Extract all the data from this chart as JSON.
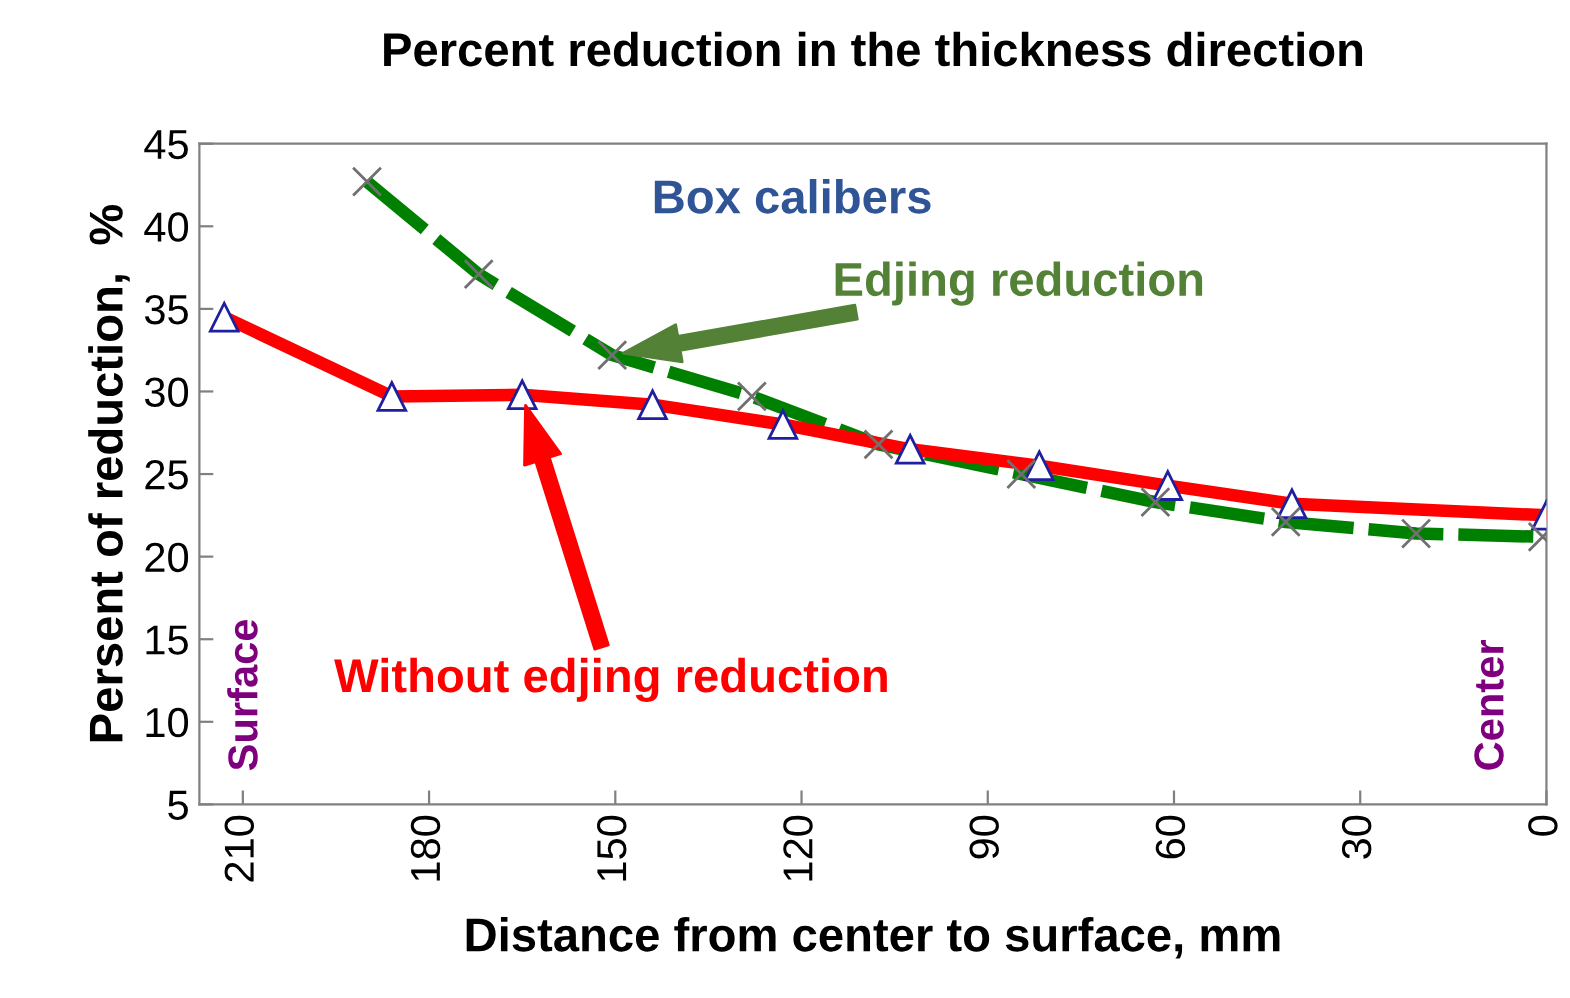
{
  "chart_data": {
    "type": "line",
    "title": "Percent reduction in the thickness direction",
    "xlabel": "Distance from center to surface, mm",
    "ylabel": "Persent of reduction,  %",
    "xlim": [
      217,
      0
    ],
    "xticks": [
      210,
      180,
      150,
      120,
      90,
      60,
      30,
      0
    ],
    "ylim": [
      5,
      45
    ],
    "yticks": [
      5,
      10,
      15,
      20,
      25,
      30,
      35,
      40,
      45
    ],
    "grid": false,
    "legend": false,
    "series": [
      {
        "name": "Without edjing reduction",
        "color": "#ff0000",
        "marker": "triangle",
        "line_style": "solid",
        "x": [
          213,
          186,
          165,
          144,
          123,
          102.5,
          81.7,
          61,
          41,
          0
        ],
        "values": [
          34.5,
          29.7,
          29.8,
          29.2,
          28.0,
          26.5,
          25.5,
          24.3,
          23.2,
          22.5
        ]
      },
      {
        "name": "Edjing reduction",
        "color": "#008000",
        "marker": "cross",
        "line_style": "dashed",
        "x": [
          190,
          172,
          150.5,
          128,
          107.6,
          84.6,
          63,
          42,
          21,
          0.6
        ],
        "values": [
          42.7,
          37.1,
          32.2,
          29.7,
          26.8,
          25.0,
          23.3,
          22.1,
          21.4,
          21.2
        ]
      }
    ],
    "annotations": [
      "Box calibers",
      "Surface",
      "Center"
    ]
  }
}
